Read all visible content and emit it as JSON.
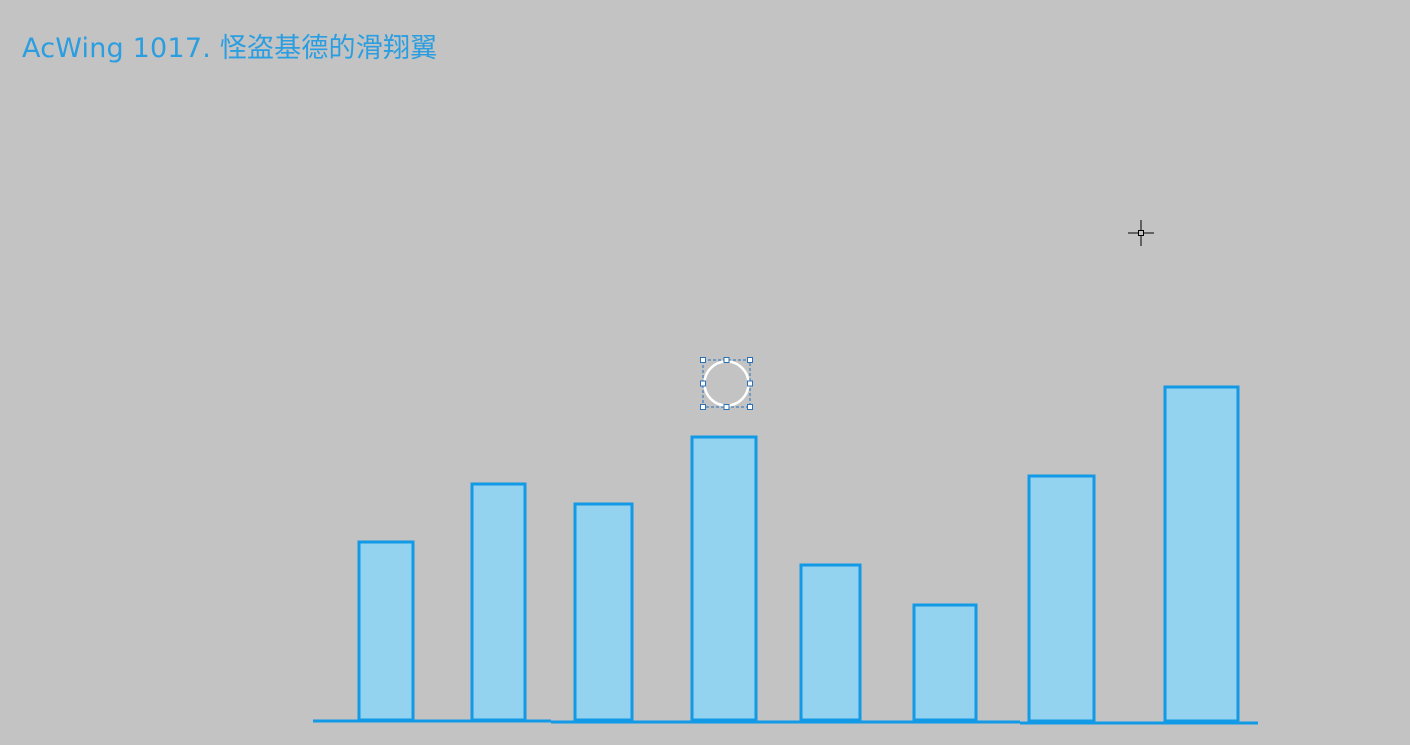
{
  "title": "AcWing 1017. 怪盗基德的滑翔翼",
  "colors": {
    "background": "#c3c3c3",
    "bar_fill": "#93d3ef",
    "bar_stroke": "#139ae7",
    "title": "#2a9ee0",
    "ground": "#139ae7"
  },
  "buildings": [
    {
      "height": 178
    },
    {
      "height": 236
    },
    {
      "height": 216
    },
    {
      "height": 283
    },
    {
      "height": 155
    },
    {
      "height": 115
    },
    {
      "height": 245
    },
    {
      "height": 334
    }
  ],
  "icons": [
    "selected-circle-shape",
    "crosshair-cursor-icon"
  ]
}
